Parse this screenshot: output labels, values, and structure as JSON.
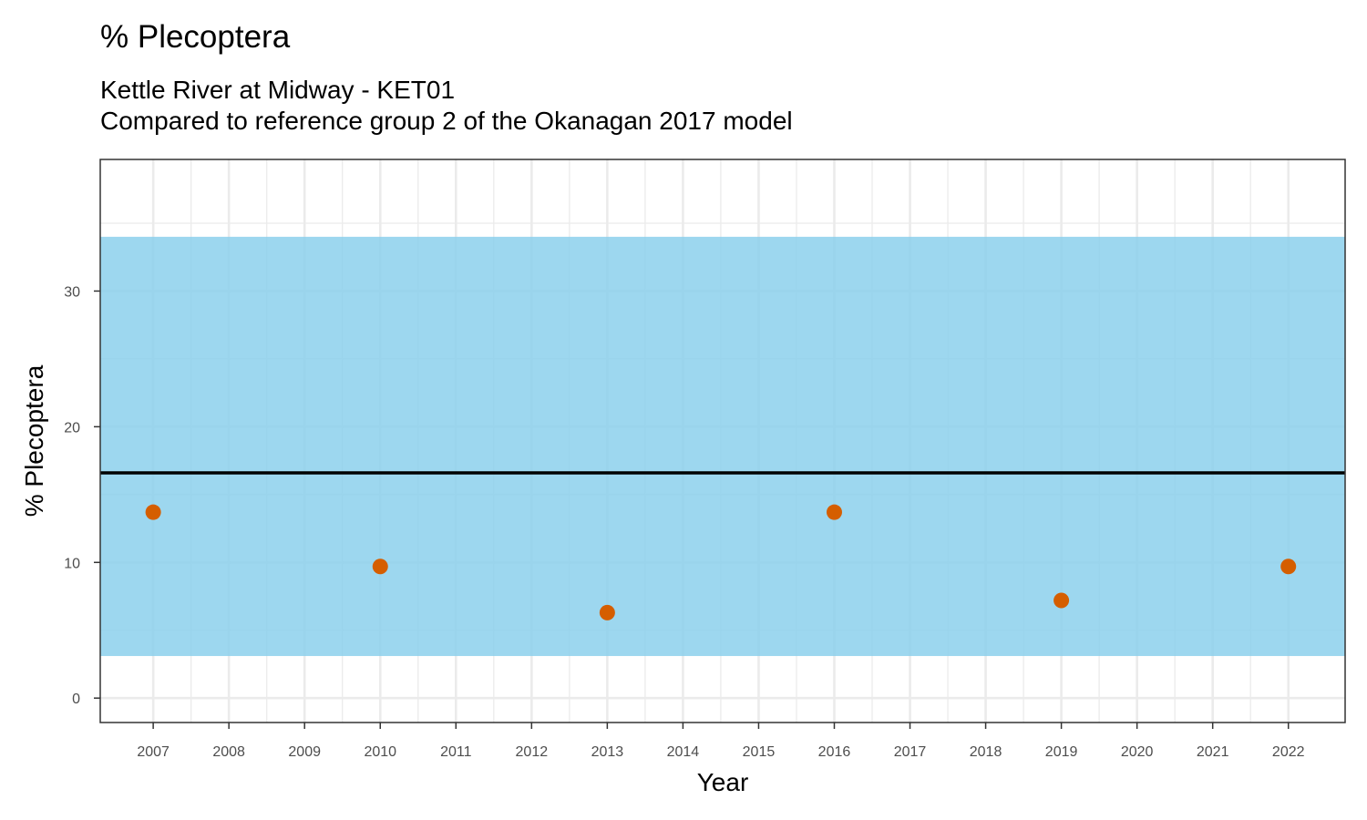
{
  "chart_data": {
    "type": "scatter",
    "title": "% Plecoptera",
    "subtitle_lines": [
      "Kettle River at Midway - KET01",
      "Compared to reference group 2 of the Okanagan 2017 model"
    ],
    "xlabel": "Year",
    "ylabel": "% Plecoptera",
    "x_ticks": [
      2007,
      2008,
      2009,
      2010,
      2011,
      2012,
      2013,
      2014,
      2015,
      2016,
      2017,
      2018,
      2019,
      2020,
      2021,
      2022
    ],
    "y_ticks": [
      0,
      10,
      20,
      30
    ],
    "xlim": [
      2006.3,
      2022.75
    ],
    "ylim": [
      -1.8,
      39.7
    ],
    "grid": true,
    "reference_band": {
      "lower": 3.1,
      "upper": 34.0,
      "color": "#87CEEB"
    },
    "reference_line": {
      "value": 16.6,
      "color": "#000000"
    },
    "series": [
      {
        "color": "#D55E00",
        "points": [
          {
            "x": 2007,
            "y": 13.7
          },
          {
            "x": 2010,
            "y": 9.7
          },
          {
            "x": 2013,
            "y": 6.3
          },
          {
            "x": 2016,
            "y": 13.7
          },
          {
            "x": 2019,
            "y": 7.2
          },
          {
            "x": 2022,
            "y": 9.7
          }
        ]
      }
    ]
  }
}
